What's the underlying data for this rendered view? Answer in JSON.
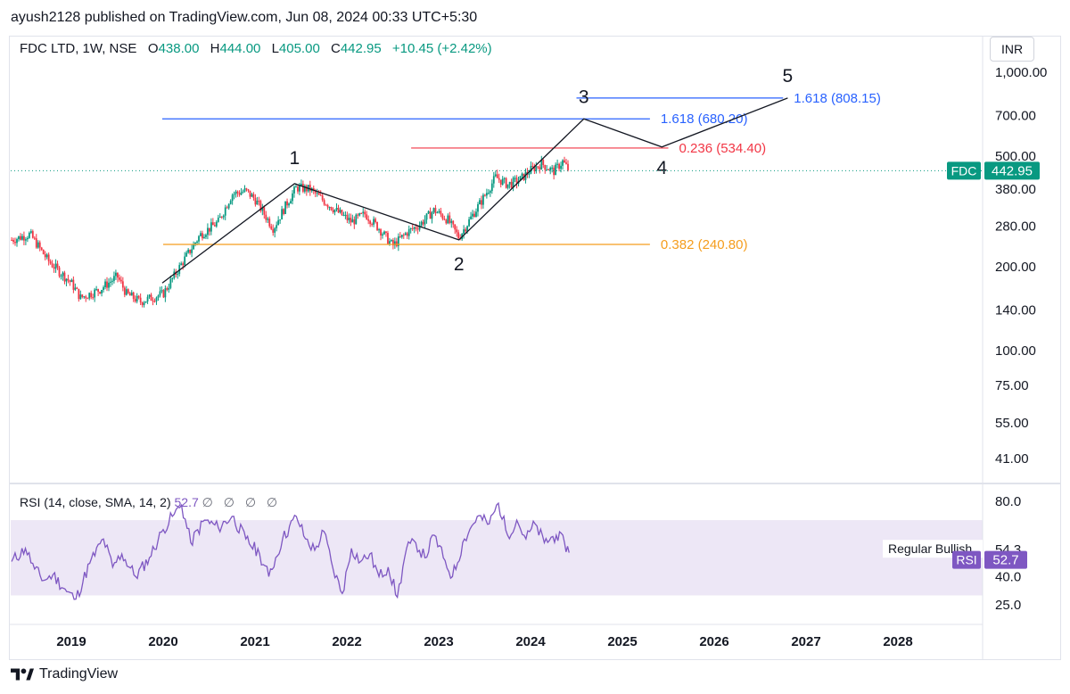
{
  "header": {
    "published": "ayush2128 published on TradingView.com, Jun 08, 2024 00:33 UTC+5:30"
  },
  "legend": {
    "symbol": "FDC LTD, 1W, NSE",
    "o_label": "O",
    "o": "438.00",
    "h_label": "H",
    "h": "444.00",
    "l_label": "L",
    "l": "405.00",
    "c_label": "C",
    "c": "442.95",
    "change": "+10.45 (+2.42%)"
  },
  "currency": "INR",
  "colors": {
    "up": "#089981",
    "down": "#f23645",
    "rsi": "#7e57c2",
    "blue": "#2962ff",
    "red": "#f23645",
    "orange": "#f59d1d",
    "text": "#131722",
    "axis": "#131722"
  },
  "rsi_legend": {
    "title": "RSI (14, close, SMA, 14, 2)",
    "value": "52.7",
    "dots": "∅ ∅ ∅ ∅"
  },
  "footer": {
    "brand": "TradingView"
  },
  "chart_data": [
    {
      "type": "candlestick",
      "y_scale": "log",
      "ylim": [
        34,
        1250
      ],
      "x_ticks": [
        "2019",
        "2020",
        "2021",
        "2022",
        "2023",
        "2024",
        "2025",
        "2026",
        "2027",
        "2028"
      ],
      "y_ticks": [
        "1,000.00",
        "700.00",
        "500.00",
        "380.00",
        "280.00",
        "200.00",
        "140.00",
        "100.00",
        "75.00",
        "55.00",
        "41.00"
      ],
      "y_tick_values": [
        1000,
        700,
        500,
        380,
        280,
        200,
        140,
        100,
        75,
        55,
        41
      ],
      "last_price": {
        "label": "FDC",
        "value": "442.95",
        "price": 442.95
      },
      "series_path": [
        [
          2018.35,
          250
        ],
        [
          2018.55,
          262
        ],
        [
          2018.75,
          210
        ],
        [
          2019.0,
          175
        ],
        [
          2019.1,
          155
        ],
        [
          2019.3,
          165
        ],
        [
          2019.5,
          185
        ],
        [
          2019.6,
          160
        ],
        [
          2019.75,
          150
        ],
        [
          2020.0,
          160
        ],
        [
          2020.2,
          205
        ],
        [
          2020.4,
          260
        ],
        [
          2020.6,
          290
        ],
        [
          2020.75,
          365
        ],
        [
          2020.9,
          375
        ],
        [
          2021.0,
          350
        ],
        [
          2021.1,
          310
        ],
        [
          2021.2,
          275
        ],
        [
          2021.35,
          340
        ],
        [
          2021.45,
          385
        ],
        [
          2021.6,
          380
        ],
        [
          2021.75,
          345
        ],
        [
          2021.9,
          315
        ],
        [
          2022.05,
          290
        ],
        [
          2022.2,
          310
        ],
        [
          2022.35,
          275
        ],
        [
          2022.5,
          238
        ],
        [
          2022.65,
          265
        ],
        [
          2022.8,
          285
        ],
        [
          2022.95,
          320
        ],
        [
          2023.1,
          295
        ],
        [
          2023.22,
          255
        ],
        [
          2023.35,
          300
        ],
        [
          2023.5,
          360
        ],
        [
          2023.62,
          420
        ],
        [
          2023.75,
          395
        ],
        [
          2023.88,
          410
        ],
        [
          2024.0,
          445
        ],
        [
          2024.12,
          470
        ],
        [
          2024.25,
          440
        ],
        [
          2024.35,
          478
        ],
        [
          2024.42,
          443
        ]
      ],
      "wave_labels": [
        "1",
        "2",
        "3",
        "4",
        "5"
      ],
      "wave_points": [
        [
          2019.99,
          175
        ],
        [
          2021.43,
          398
        ],
        [
          2023.22,
          250
        ],
        [
          2024.58,
          680
        ],
        [
          2025.43,
          539
        ],
        [
          2026.8,
          808
        ]
      ],
      "levels": [
        {
          "label": "1.618 (680.20)",
          "price": 680.2,
          "x_from": 2019.99,
          "x_to": 2025.3,
          "color": "#2962ff"
        },
        {
          "label": "1.618 (808.15)",
          "price": 808.15,
          "x_from": 2024.5,
          "x_to": 2026.75,
          "color": "#2962ff"
        },
        {
          "label": "0.236 (534.40)",
          "price": 534.4,
          "x_from": 2022.7,
          "x_to": 2025.5,
          "color": "#f23645"
        },
        {
          "label": "0.382 (240.80)",
          "price": 240.8,
          "x_from": 2020.0,
          "x_to": 2025.3,
          "color": "#f59d1d"
        }
      ]
    },
    {
      "type": "line",
      "name": "RSI",
      "ylim": [
        20,
        85
      ],
      "y_ticks": [
        "80.0",
        "54.3",
        "40.0",
        "25.0"
      ],
      "y_tick_values": [
        80,
        54.3,
        40,
        25
      ],
      "band": [
        30,
        70
      ],
      "last_value": {
        "label": "RSI",
        "value": "52.7",
        "price": 52.7
      },
      "annotation": "Regular Bullish",
      "series_path": [
        [
          2018.35,
          48
        ],
        [
          2018.5,
          55
        ],
        [
          2018.6,
          44
        ],
        [
          2018.7,
          38
        ],
        [
          2018.8,
          41
        ],
        [
          2018.95,
          32
        ],
        [
          2019.05,
          28
        ],
        [
          2019.2,
          47
        ],
        [
          2019.35,
          60
        ],
        [
          2019.45,
          45
        ],
        [
          2019.55,
          52
        ],
        [
          2019.7,
          40
        ],
        [
          2019.85,
          50
        ],
        [
          2020.0,
          65
        ],
        [
          2020.1,
          72
        ],
        [
          2020.2,
          78
        ],
        [
          2020.3,
          58
        ],
        [
          2020.45,
          70
        ],
        [
          2020.6,
          66
        ],
        [
          2020.75,
          72
        ],
        [
          2020.9,
          60
        ],
        [
          2021.05,
          52
        ],
        [
          2021.15,
          40
        ],
        [
          2021.3,
          60
        ],
        [
          2021.45,
          72
        ],
        [
          2021.55,
          60
        ],
        [
          2021.65,
          54
        ],
        [
          2021.75,
          64
        ],
        [
          2021.85,
          44
        ],
        [
          2021.95,
          31
        ],
        [
          2022.05,
          55
        ],
        [
          2022.15,
          48
        ],
        [
          2022.25,
          52
        ],
        [
          2022.35,
          40
        ],
        [
          2022.45,
          45
        ],
        [
          2022.55,
          29
        ],
        [
          2022.65,
          55
        ],
        [
          2022.75,
          58
        ],
        [
          2022.85,
          50
        ],
        [
          2022.95,
          62
        ],
        [
          2023.05,
          50
        ],
        [
          2023.15,
          40
        ],
        [
          2023.28,
          60
        ],
        [
          2023.42,
          72
        ],
        [
          2023.55,
          68
        ],
        [
          2023.65,
          79
        ],
        [
          2023.75,
          62
        ],
        [
          2023.85,
          70
        ],
        [
          2023.95,
          60
        ],
        [
          2024.05,
          68
        ],
        [
          2024.15,
          58
        ],
        [
          2024.28,
          62
        ],
        [
          2024.37,
          58
        ],
        [
          2024.42,
          52.7
        ]
      ]
    }
  ]
}
